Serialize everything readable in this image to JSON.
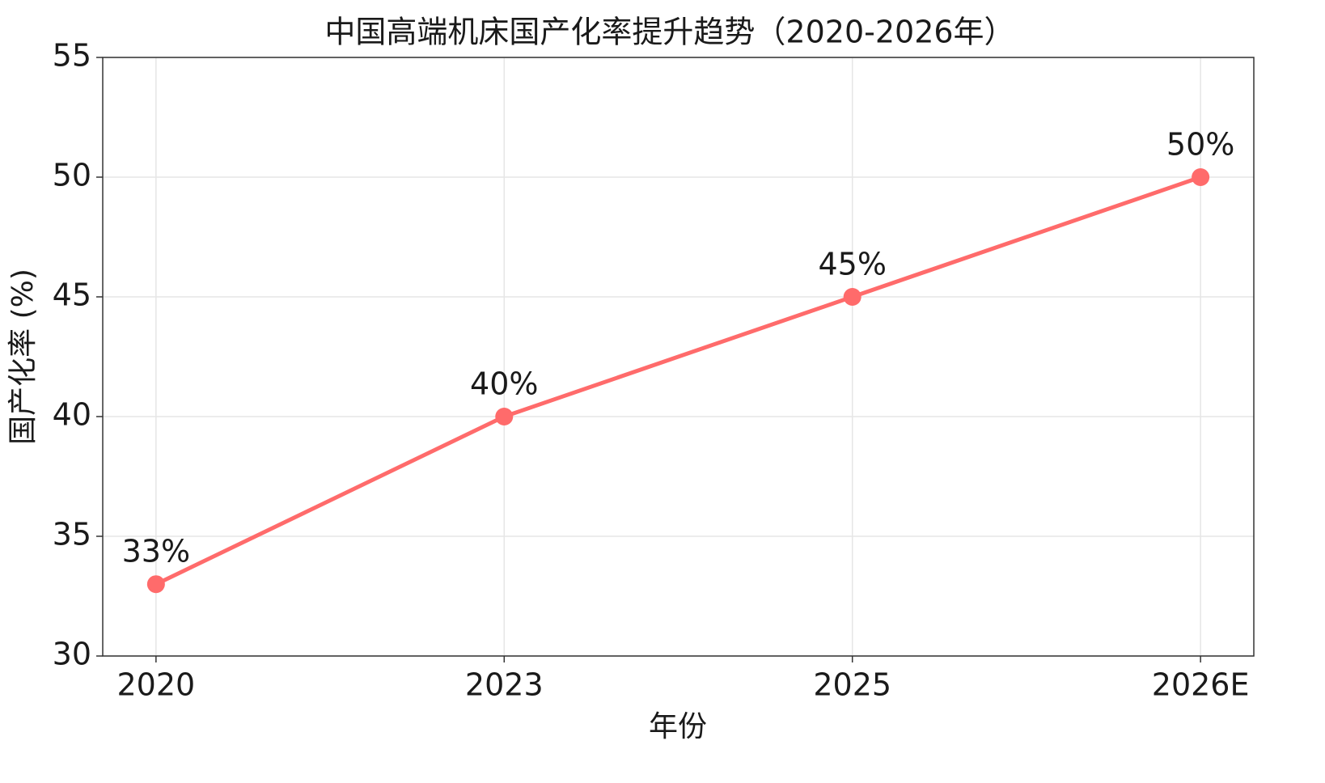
{
  "chart_data": {
    "type": "line",
    "title": "中国高端机床国产化率提升趋势（2020-2026年）",
    "x_label": "年份",
    "y_label": "国产化率 (%)",
    "categories": [
      "2020",
      "2023",
      "2025",
      "2026E"
    ],
    "series": [
      {
        "name": "国产化率",
        "color": "#ff6b6b",
        "values": [
          33,
          40,
          45,
          50
        ],
        "value_labels": [
          "33%",
          "40%",
          "45%",
          "50%"
        ]
      }
    ],
    "ylim": [
      30,
      55
    ],
    "yticks": [
      30,
      35,
      40,
      45,
      50,
      55
    ],
    "grid": true
  }
}
